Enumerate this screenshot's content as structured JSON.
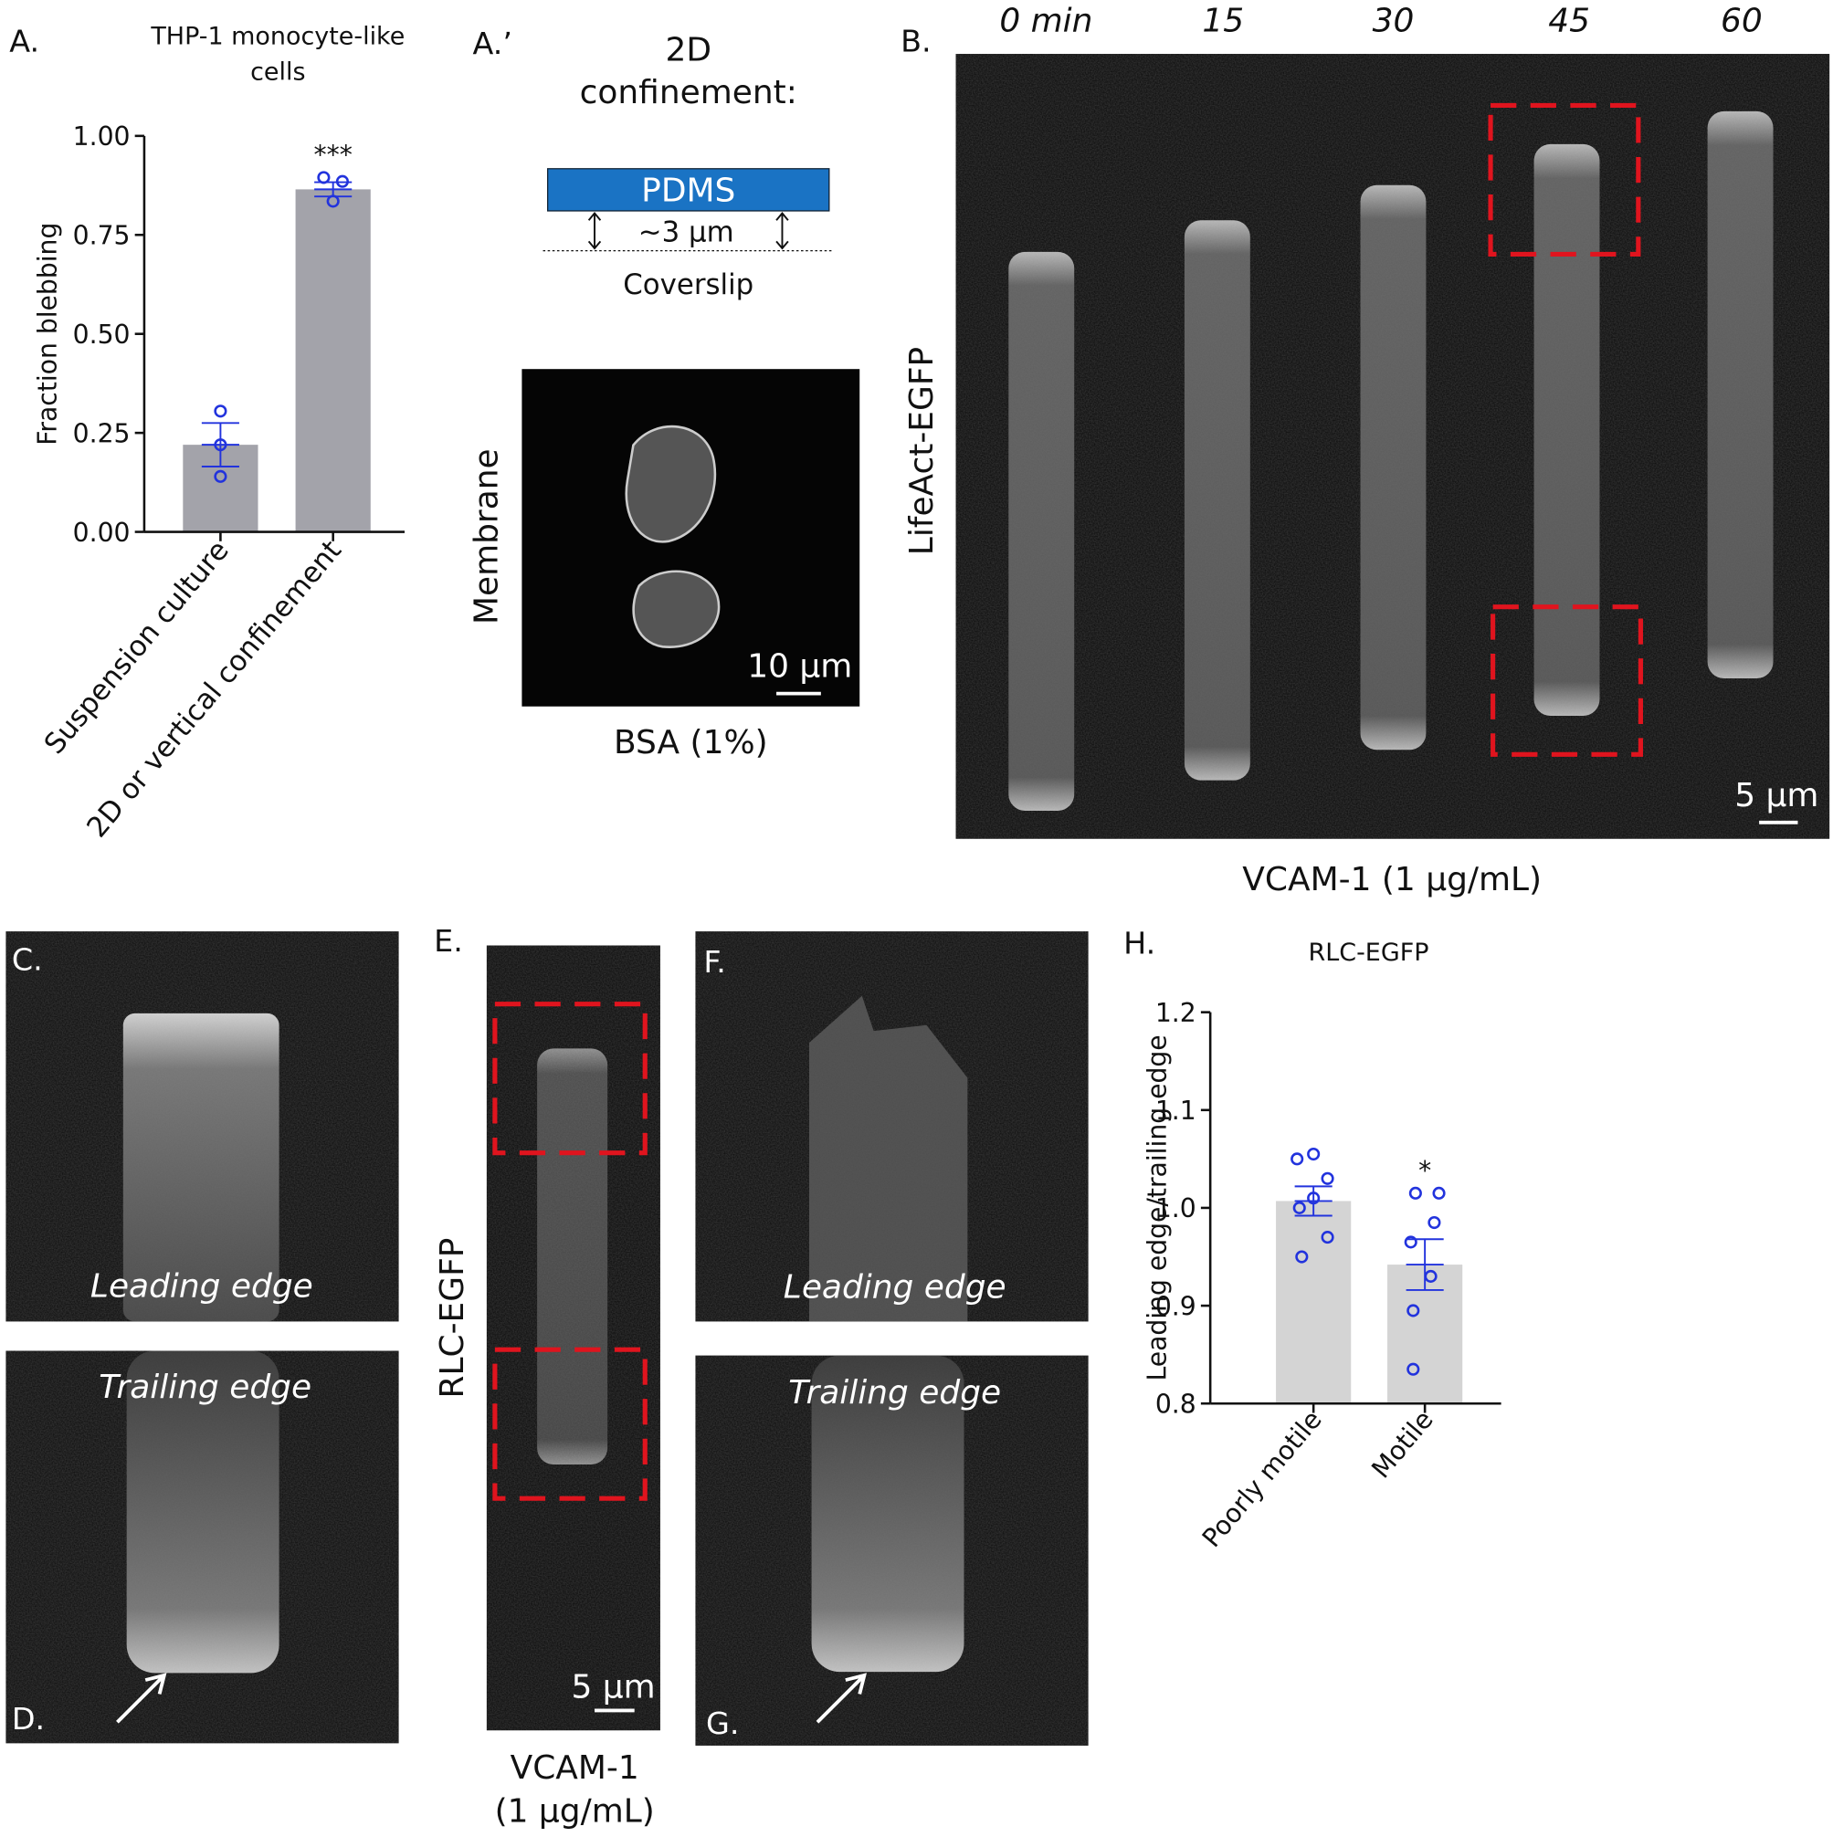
{
  "chart_data": [
    {
      "type": "bar",
      "panel_label": "A.",
      "title": [
        "THP-1 monocyte-like",
        "cells"
      ],
      "y_label": "Fraction blebbing",
      "categories": [
        "Suspension culture",
        "2D or vertical confinement"
      ],
      "values": [
        0.22,
        0.865
      ],
      "errors": [
        0.055,
        0.018
      ],
      "points": [
        [
          0.305,
          0.22,
          0.14
        ],
        [
          0.895,
          0.885,
          0.835
        ]
      ],
      "annotations": [
        {
          "category": "2D or vertical confinement",
          "text": "***"
        }
      ],
      "color": "#a3a3aa",
      "point_color": "#2233dd",
      "ylim": [
        0,
        1.0
      ],
      "yticks": [
        {
          "value": 0,
          "label": "0.00"
        },
        {
          "value": 0.25,
          "label": "0.25"
        },
        {
          "value": 0.5,
          "label": "0.50"
        },
        {
          "value": 0.75,
          "label": "0.75"
        },
        {
          "value": 1.0,
          "label": "1.00"
        }
      ]
    },
    {
      "type": "bar",
      "panel_label": "H.",
      "title": [
        "RLC-EGFP"
      ],
      "y_label": "Leading edge/trailing edge",
      "categories": [
        "Poorly motile",
        "Motile"
      ],
      "values": [
        1.007,
        0.942
      ],
      "errors": [
        0.015,
        0.026
      ],
      "points": [
        [
          1.055,
          1.05,
          1.03,
          1.01,
          1.0,
          0.97,
          0.95
        ],
        [
          1.015,
          1.015,
          0.985,
          0.965,
          0.93,
          0.895,
          0.835
        ]
      ],
      "annotations": [
        {
          "category": "Motile",
          "text": "*"
        }
      ],
      "color": "#d4d4d4",
      "point_color": "#2233dd",
      "ylim": [
        0.8,
        1.2
      ],
      "yticks": [
        0.8,
        0.9,
        {
          "value": 1.0,
          "label": "1.0"
        },
        1.1,
        1.2
      ]
    }
  ],
  "panels": {
    "a_prime": {
      "label": "A.’",
      "title": [
        "2D",
        "confinement:"
      ],
      "pdms": "PDMS",
      "gap": "~3 μm",
      "coverslip": "Coverslip",
      "channel": "Membrane",
      "scale": "10 μm",
      "condition": "BSA (1%)"
    },
    "b": {
      "label": "B.",
      "times": [
        "0 min",
        "15",
        "30",
        "45",
        "60"
      ],
      "channel": "LifeAct-EGFP",
      "scale": "5 μm",
      "condition": "VCAM-1 (1 μg/mL)"
    },
    "c": {
      "label": "C.",
      "caption": "Leading edge"
    },
    "d": {
      "label": "D.",
      "caption": "Trailing edge"
    },
    "e": {
      "label": "E.",
      "channel": "RLC-EGFP",
      "scale": "5 μm",
      "condition": [
        "VCAM-1",
        "(1 μg/mL)"
      ]
    },
    "f": {
      "label": "F.",
      "caption": "Leading edge"
    },
    "g": {
      "label": "G.",
      "caption": "Trailing edge"
    }
  }
}
